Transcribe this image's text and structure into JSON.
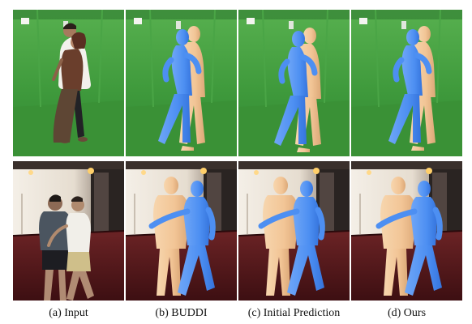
{
  "figure": {
    "captions": [
      "(a) Input",
      "(b) BUDDI",
      "(c) Initial Prediction",
      "(d) Ours"
    ]
  },
  "colors": {
    "green_screen": "#3f9a3c",
    "room_wall": "#ece6dc",
    "carpet": "#5a1a1c",
    "mesh_blue": "#4d8ff2",
    "mesh_skin": "#f2c596"
  },
  "panels": {
    "row1": [
      "input-photo",
      "buddi-mesh",
      "initial-prediction-mesh",
      "ours-mesh"
    ],
    "row2": [
      "input-photo",
      "buddi-mesh",
      "initial-prediction-mesh",
      "ours-mesh"
    ]
  }
}
